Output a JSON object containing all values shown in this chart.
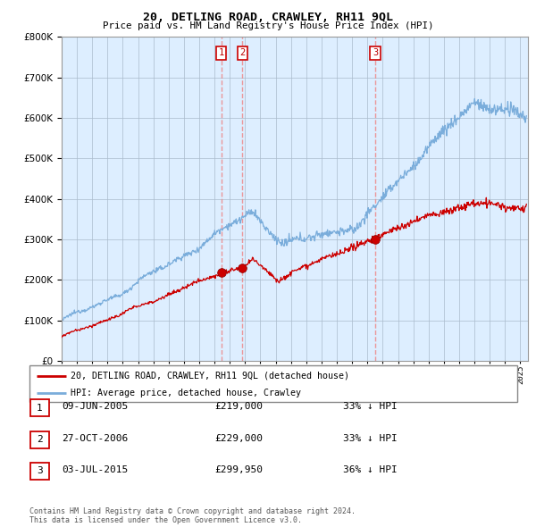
{
  "title": "20, DETLING ROAD, CRAWLEY, RH11 9QL",
  "subtitle": "Price paid vs. HM Land Registry's House Price Index (HPI)",
  "ylim": [
    0,
    800000
  ],
  "xlim_start": 1995.0,
  "xlim_end": 2025.5,
  "sale_year_floats": [
    2005.44,
    2006.82,
    2015.51
  ],
  "sale_prices": [
    219000,
    229000,
    299950
  ],
  "sale_labels": [
    "1",
    "2",
    "3"
  ],
  "legend_line1": "20, DETLING ROAD, CRAWLEY, RH11 9QL (detached house)",
  "legend_line2": "HPI: Average price, detached house, Crawley",
  "table_data": [
    [
      "1",
      "09-JUN-2005",
      "£219,000",
      "33% ↓ HPI"
    ],
    [
      "2",
      "27-OCT-2006",
      "£229,000",
      "33% ↓ HPI"
    ],
    [
      "3",
      "03-JUL-2015",
      "£299,950",
      "36% ↓ HPI"
    ]
  ],
  "footer": "Contains HM Land Registry data © Crown copyright and database right 2024.\nThis data is licensed under the Open Government Licence v3.0.",
  "line_color_red": "#cc0000",
  "line_color_blue": "#7aaddb",
  "vline_color": "#ee8888",
  "background_color": "#ddeeff",
  "grid_color": "#aabbcc",
  "chart_bg": "#ddeeff"
}
